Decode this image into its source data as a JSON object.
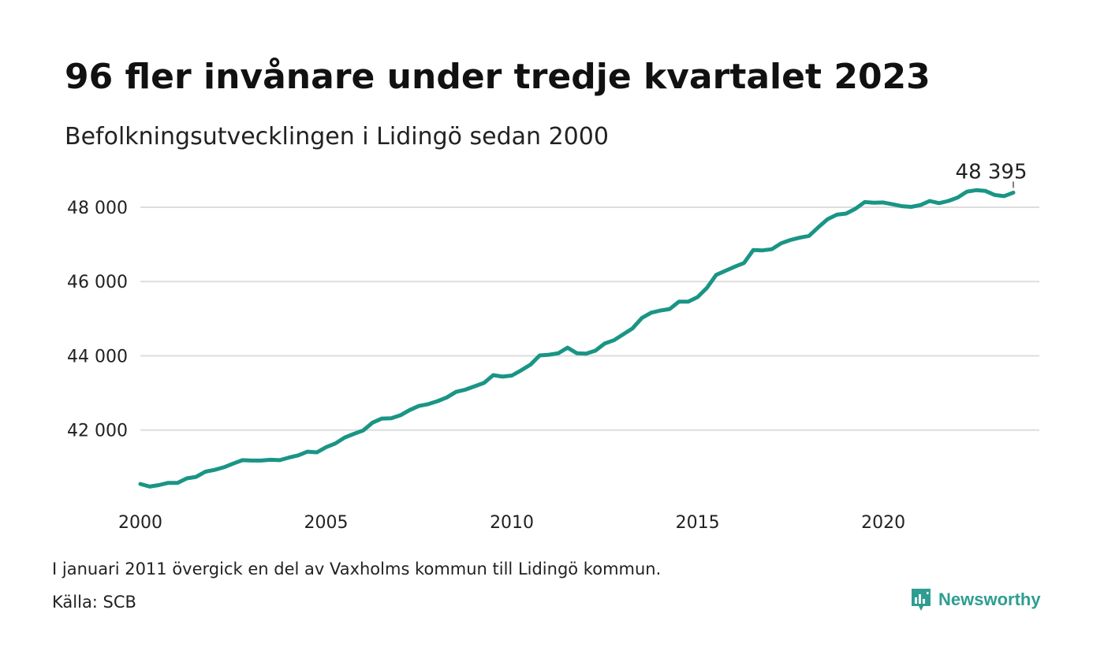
{
  "title": "96 fler invånare under tredje kvartalet 2023",
  "subtitle": "Befolkningsutvecklingen i Lidingö sedan 2000",
  "note": "I januari 2011 övergick en del av Vaxholms kommun till Lidingö kommun.",
  "source": "Källa: SCB",
  "brand": {
    "name": "Newsworthy",
    "icon": "newsworthy-logo-icon",
    "color": "#2e9e91"
  },
  "chart_data": {
    "type": "line",
    "grid": true,
    "line_color": "#1a9585",
    "x_ticks": [
      2000,
      2005,
      2010,
      2015,
      2020
    ],
    "x_tick_labels": [
      "2000",
      "2005",
      "2010",
      "2015",
      "2020"
    ],
    "y_ticks": [
      42000,
      44000,
      46000,
      48000
    ],
    "y_tick_labels": [
      "42 000",
      "44 000",
      "46 000",
      "48 000"
    ],
    "xlim": [
      2000,
      2024.2
    ],
    "ylim": [
      40000,
      48700
    ],
    "annotation": {
      "label": "48 395",
      "x": 2023.5,
      "y": 48395
    },
    "series": [
      {
        "x": [
          2000.0,
          2000.25,
          2000.5,
          2000.75,
          2001.0,
          2001.25,
          2001.5,
          2001.75,
          2002.0,
          2002.25,
          2002.5,
          2002.75,
          2003.0,
          2003.25,
          2003.5,
          2003.75,
          2004.0,
          2004.25,
          2004.5,
          2004.75,
          2005.0,
          2005.25,
          2005.5,
          2005.75,
          2006.0,
          2006.25,
          2006.5,
          2006.75,
          2007.0,
          2007.25,
          2007.5,
          2007.75,
          2008.0,
          2008.25,
          2008.5,
          2008.75,
          2009.0,
          2009.25,
          2009.5,
          2009.75,
          2010.0,
          2010.25,
          2010.5,
          2010.75,
          2011.0,
          2011.25,
          2011.5,
          2011.75,
          2012.0,
          2012.25,
          2012.5,
          2012.75,
          2013.0,
          2013.25,
          2013.5,
          2013.75,
          2014.0,
          2014.25,
          2014.5,
          2014.75,
          2015.0,
          2015.25,
          2015.5,
          2015.75,
          2016.0,
          2016.25,
          2016.5,
          2016.75,
          2017.0,
          2017.25,
          2017.5,
          2017.75,
          2018.0,
          2018.25,
          2018.5,
          2018.75,
          2019.0,
          2019.25,
          2019.5,
          2019.75,
          2020.0,
          2020.25,
          2020.5,
          2020.75,
          2021.0,
          2021.25,
          2021.5,
          2021.75,
          2022.0,
          2022.25,
          2022.5,
          2022.75,
          2023.0,
          2023.25,
          2023.5
        ],
        "y": [
          40550,
          40480,
          40520,
          40580,
          40580,
          40700,
          40740,
          40880,
          40930,
          41000,
          41100,
          41190,
          41180,
          41180,
          41200,
          41190,
          41260,
          41320,
          41420,
          41400,
          41540,
          41640,
          41800,
          41900,
          41990,
          42200,
          42310,
          42320,
          42400,
          42540,
          42650,
          42700,
          42780,
          42880,
          43030,
          43090,
          43180,
          43270,
          43480,
          43440,
          43470,
          43610,
          43760,
          44010,
          44030,
          44070,
          44220,
          44070,
          44060,
          44140,
          44330,
          44420,
          44580,
          44740,
          45020,
          45160,
          45220,
          45260,
          45460,
          45460,
          45580,
          45830,
          46180,
          46290,
          46400,
          46500,
          46850,
          46840,
          46870,
          47030,
          47120,
          47180,
          47230,
          47460,
          47680,
          47800,
          47830,
          47960,
          48140,
          48120,
          48130,
          48080,
          48030,
          48010,
          48060,
          48170,
          48110,
          48170,
          48260,
          48420,
          48460,
          48440,
          48330,
          48300,
          48395
        ]
      }
    ]
  }
}
